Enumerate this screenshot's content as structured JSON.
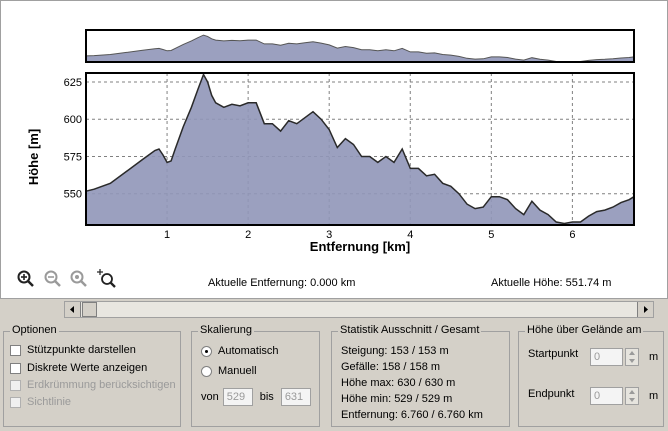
{
  "chart_data": {
    "type": "area",
    "xlabel": "Entfernung [km]",
    "ylabel": "Höhe [m]",
    "xlim": [
      0,
      6.76
    ],
    "ylim": [
      529,
      631
    ],
    "xticks": [
      "1",
      "2",
      "3",
      "4",
      "5",
      "6"
    ],
    "yticks": [
      "550",
      "575",
      "600",
      "625"
    ],
    "grid": true,
    "fill_color": "#9096b8",
    "x": [
      0,
      0.1,
      0.3,
      0.5,
      0.7,
      0.85,
      0.9,
      0.95,
      1.0,
      1.05,
      1.1,
      1.2,
      1.3,
      1.38,
      1.45,
      1.5,
      1.55,
      1.6,
      1.7,
      1.8,
      1.9,
      2.0,
      2.1,
      2.2,
      2.3,
      2.4,
      2.5,
      2.6,
      2.7,
      2.8,
      2.9,
      3.0,
      3.1,
      3.2,
      3.3,
      3.4,
      3.5,
      3.6,
      3.7,
      3.8,
      3.9,
      4.0,
      4.1,
      4.2,
      4.3,
      4.4,
      4.5,
      4.6,
      4.7,
      4.8,
      4.9,
      5.0,
      5.1,
      5.2,
      5.3,
      5.4,
      5.5,
      5.6,
      5.7,
      5.8,
      5.9,
      6.0,
      6.1,
      6.2,
      6.3,
      6.4,
      6.5,
      6.6,
      6.7,
      6.76
    ],
    "y": [
      551.7,
      553,
      557,
      565,
      573,
      579,
      580,
      576,
      571,
      572,
      580,
      595,
      608,
      620,
      630,
      625,
      616,
      611,
      608,
      610,
      609,
      611,
      611,
      597,
      597,
      592,
      599,
      597,
      601,
      605,
      600,
      593,
      581,
      587,
      583,
      575,
      575,
      571,
      575,
      571,
      580,
      567,
      567,
      562,
      563,
      557,
      555,
      550,
      543,
      540,
      541,
      548,
      548,
      546,
      540,
      536,
      545,
      539,
      536,
      531,
      530,
      531,
      531,
      535,
      538,
      539,
      541,
      544,
      546,
      548
    ]
  },
  "tools": {
    "zoom_in": "zoom-in-icon",
    "zoom_out": "zoom-out-icon",
    "zoom_fit": "zoom-fit-icon",
    "zoom_select": "zoom-select-icon"
  },
  "status": {
    "distance": "Aktuelle Entfernung: 0.000 km",
    "height": "Aktuelle Höhe: 551.74 m"
  },
  "options": {
    "title": "Optionen",
    "items": [
      {
        "label": "Stützpunkte darstellen",
        "enabled": true
      },
      {
        "label": "Diskrete Werte anzeigen",
        "enabled": true
      },
      {
        "label": "Erdkrümmung berücksichtigen",
        "enabled": false
      },
      {
        "label": "Sichtlinie",
        "enabled": false
      }
    ]
  },
  "scaling": {
    "title": "Skalierung",
    "automatic": "Automatisch",
    "manual": "Manuell",
    "from_label": "von",
    "from_value": "529",
    "to_label": "bis",
    "to_value": "631"
  },
  "stats": {
    "title": "Statistik  Ausschnitt / Gesamt",
    "lines": [
      "Steigung: 153 / 153 m",
      "Gefälle: 158 / 158 m",
      "Höhe max: 630 / 630 m",
      "Höhe min: 529 / 529 m",
      "Entfernung: 6.760 / 6.760 km"
    ]
  },
  "terrain": {
    "title": "Höhe über Gelände am",
    "start_label": "Startpunkt",
    "start_value": "0",
    "end_label": "Endpunkt",
    "end_value": "0",
    "unit": "m"
  }
}
